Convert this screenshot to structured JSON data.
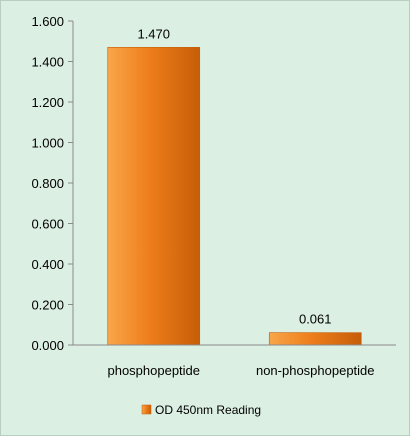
{
  "chart_data": {
    "type": "bar",
    "categories": [
      "phosphopeptide",
      "non-phosphopeptide"
    ],
    "series": [
      {
        "name": "OD 450nm Reading",
        "values": [
          1.47,
          0.061
        ],
        "value_labels": [
          "1.470",
          "0.061"
        ]
      }
    ],
    "ylim": [
      0,
      1.6
    ],
    "yticks": [
      "0.000",
      "0.200",
      "0.400",
      "0.600",
      "0.800",
      "1.000",
      "1.200",
      "1.400",
      "1.600"
    ],
    "ytick_values": [
      0,
      0.2,
      0.4,
      0.6,
      0.8,
      1.0,
      1.2,
      1.4,
      1.6
    ],
    "grid": false,
    "legend_position": "bottom",
    "colors": {
      "bar_light": "#f9a64a",
      "bar_mid": "#ee7e1b",
      "bar_dark": "#c65d08",
      "background": "#dcefe3"
    }
  }
}
